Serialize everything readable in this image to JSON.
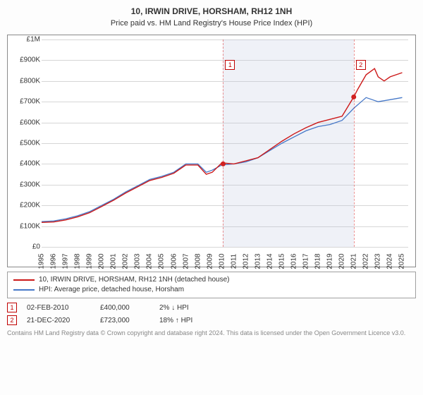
{
  "title": "10, IRWIN DRIVE, HORSHAM, RH12 1NH",
  "subtitle": "Price paid vs. HM Land Registry's House Price Index (HPI)",
  "chart": {
    "type": "line",
    "x_range": [
      1995,
      2025.5
    ],
    "y_range": [
      0,
      1000000
    ],
    "y_ticks": [
      0,
      100000,
      200000,
      300000,
      400000,
      500000,
      600000,
      700000,
      800000,
      900000,
      1000000
    ],
    "y_tick_labels": [
      "£0",
      "£100K",
      "£200K",
      "£300K",
      "£400K",
      "£500K",
      "£600K",
      "£700K",
      "£800K",
      "£900K",
      "£1M"
    ],
    "x_ticks": [
      1995,
      1996,
      1997,
      1998,
      1999,
      2000,
      2001,
      2002,
      2003,
      2004,
      2005,
      2006,
      2007,
      2008,
      2009,
      2010,
      2011,
      2012,
      2013,
      2014,
      2015,
      2016,
      2017,
      2018,
      2019,
      2020,
      2021,
      2022,
      2023,
      2024,
      2025
    ],
    "grid_color": "#d6d6d6",
    "plot_border": "#8a8a8a",
    "background_color": "#ffffff",
    "shade_range": [
      2010.1,
      2020.97
    ],
    "shade_color": "rgba(190,200,225,0.25)",
    "series": [
      {
        "name": "price_paid",
        "label": "10, IRWIN DRIVE, HORSHAM, RH12 1NH (detached house)",
        "color": "#cc1818",
        "width": 1.4,
        "xs": [
          1995,
          1996,
          1997,
          1998,
          1999,
          2000,
          2001,
          2002,
          2003,
          2004,
          2005,
          2006,
          2007,
          2008,
          2008.7,
          2009.2,
          2010,
          2011,
          2012,
          2013,
          2014,
          2015,
          2016,
          2017,
          2018,
          2019,
          2020,
          2020.97,
          2021.3,
          2022,
          2022.7,
          2023,
          2023.5,
          2024,
          2025
        ],
        "ys": [
          118000,
          120000,
          130000,
          145000,
          165000,
          195000,
          225000,
          260000,
          290000,
          320000,
          335000,
          355000,
          395000,
          395000,
          350000,
          360000,
          405000,
          400000,
          415000,
          430000,
          470000,
          510000,
          545000,
          575000,
          600000,
          615000,
          630000,
          723000,
          760000,
          830000,
          860000,
          820000,
          800000,
          820000,
          840000
        ]
      },
      {
        "name": "hpi",
        "label": "HPI: Average price, detached house, Horsham",
        "color": "#4678c8",
        "width": 1.3,
        "xs": [
          1995,
          1996,
          1997,
          1998,
          1999,
          2000,
          2001,
          2002,
          2003,
          2004,
          2005,
          2006,
          2007,
          2008,
          2008.7,
          2009.2,
          2010,
          2011,
          2012,
          2013,
          2014,
          2015,
          2016,
          2017,
          2018,
          2019,
          2020,
          2021,
          2022,
          2023,
          2024,
          2025
        ],
        "ys": [
          122000,
          125000,
          135000,
          150000,
          170000,
          200000,
          230000,
          265000,
          295000,
          325000,
          340000,
          360000,
          400000,
          400000,
          360000,
          370000,
          395000,
          400000,
          410000,
          430000,
          465000,
          500000,
          530000,
          560000,
          580000,
          590000,
          610000,
          670000,
          720000,
          700000,
          710000,
          720000
        ]
      }
    ],
    "markers": [
      {
        "n": "1",
        "x": 2010.1,
        "y": 400000,
        "label_y": 900000
      },
      {
        "n": "2",
        "x": 2020.97,
        "y": 723000,
        "label_y": 900000
      }
    ]
  },
  "legend": [
    {
      "color": "#cc1818",
      "label": "10, IRWIN DRIVE, HORSHAM, RH12 1NH (detached house)"
    },
    {
      "color": "#4678c8",
      "label": "HPI: Average price, detached house, Horsham"
    }
  ],
  "sales": [
    {
      "n": "1",
      "date": "02-FEB-2010",
      "price": "£400,000",
      "pct": "2% ↓ HPI"
    },
    {
      "n": "2",
      "date": "21-DEC-2020",
      "price": "£723,000",
      "pct": "18% ↑ HPI"
    }
  ],
  "attribution": "Contains HM Land Registry data © Crown copyright and database right 2024.\nThis data is licensed under the Open Government Licence v3.0."
}
